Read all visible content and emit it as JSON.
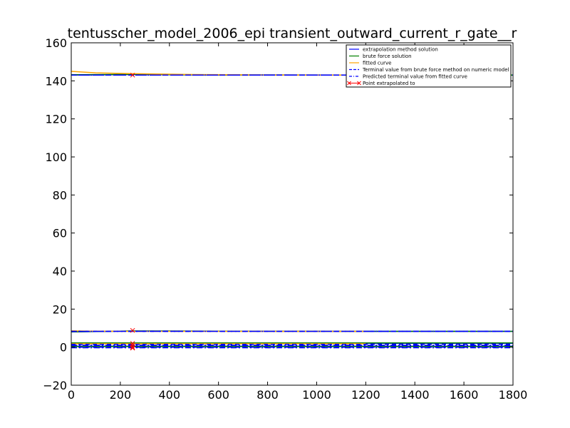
{
  "chart_data": {
    "type": "line",
    "title": "tentusscher_model_2006_epi transient_outward_current_r_gate__r",
    "xlabel": "",
    "ylabel": "",
    "xlim": [
      0,
      1800
    ],
    "ylim": [
      -20,
      160
    ],
    "x_ticks": [
      0,
      200,
      400,
      600,
      800,
      1000,
      1200,
      1400,
      1600,
      1800
    ],
    "y_ticks": [
      -20,
      0,
      20,
      40,
      60,
      80,
      100,
      120,
      140,
      160
    ],
    "x_tick_labels": [
      "0",
      "200",
      "400",
      "600",
      "800",
      "1000",
      "1200",
      "1400",
      "1600",
      "1800"
    ],
    "y_tick_labels": [
      "−20",
      "0",
      "20",
      "40",
      "60",
      "80",
      "100",
      "120",
      "140",
      "160"
    ],
    "grid": false,
    "legend_position": "top-right",
    "legend": [
      {
        "label": "extrapolation method solution",
        "color": "#0000ff",
        "style": "solid"
      },
      {
        "label": "brute force solution",
        "color": "#008000",
        "style": "solid"
      },
      {
        "label": "fitted curve",
        "color": "#ffa500",
        "style": "solid"
      },
      {
        "label": "Terminal value from brute force method on numeric model",
        "color": "#0000ff",
        "style": "dashed"
      },
      {
        "label": "Predicted terminal value from fitted curve",
        "color": "#0000ff",
        "style": "dashdot"
      },
      {
        "label": "Point extrapolated to",
        "color": "#ff0000",
        "style": "x-marker"
      }
    ],
    "series": [
      {
        "role": "extrapolation",
        "color": "#0000ff",
        "style": "solid",
        "x": [
          0,
          250,
          600,
          1200,
          1800
        ],
        "y": [
          143.0,
          143.3,
          143.1,
          143.0,
          143.0
        ]
      },
      {
        "role": "brute",
        "color": "#008000",
        "style": "solid",
        "x": [
          0,
          250,
          600,
          1200,
          1800
        ],
        "y": [
          143.2,
          143.4,
          143.1,
          143.0,
          143.0
        ]
      },
      {
        "role": "fitted",
        "color": "#ffa500",
        "style": "solid",
        "x": [
          0,
          100,
          250,
          500,
          800,
          1200
        ],
        "y": [
          145.0,
          144.2,
          143.8,
          143.3,
          143.1,
          143.0
        ]
      },
      {
        "role": "terminal-brute",
        "color": "#0000ff",
        "style": "dashed",
        "x": [
          0,
          1800
        ],
        "y": [
          143.0,
          143.0
        ]
      },
      {
        "role": "terminal-fit",
        "color": "#0000ff",
        "style": "dashdot",
        "x": [
          0,
          1800
        ],
        "y": [
          143.0,
          143.0
        ]
      },
      {
        "role": "extrapolation",
        "color": "#0000ff",
        "style": "solid",
        "x": [
          0,
          250,
          600,
          1200,
          1800
        ],
        "y": [
          8.0,
          8.5,
          8.4,
          8.3,
          8.3
        ]
      },
      {
        "role": "brute",
        "color": "#008000",
        "style": "solid",
        "x": [
          0,
          250,
          600,
          1200,
          1800
        ],
        "y": [
          8.1,
          8.5,
          8.4,
          8.3,
          8.3
        ]
      },
      {
        "role": "fitted",
        "color": "#ffa500",
        "style": "solid",
        "x": [
          0,
          100,
          250,
          500,
          800,
          1200
        ],
        "y": [
          8.6,
          8.4,
          8.3,
          8.3,
          8.3,
          8.3
        ]
      },
      {
        "role": "terminal-brute",
        "color": "#0000ff",
        "style": "dashed",
        "x": [
          0,
          1800
        ],
        "y": [
          8.3,
          8.3
        ]
      },
      {
        "role": "terminal-fit",
        "color": "#0000ff",
        "style": "dashdot",
        "x": [
          0,
          1800
        ],
        "y": [
          8.3,
          8.3
        ]
      },
      {
        "role": "extrapolation",
        "color": "#0000ff",
        "style": "solid",
        "x": [
          0,
          1800
        ],
        "y": [
          2.0,
          2.0
        ]
      },
      {
        "role": "brute",
        "color": "#008000",
        "style": "solid",
        "x": [
          0,
          1800
        ],
        "y": [
          2.2,
          2.2
        ]
      },
      {
        "role": "fitted",
        "color": "#ffa500",
        "style": "solid",
        "x": [
          0,
          1200
        ],
        "y": [
          1.8,
          1.8
        ]
      },
      {
        "role": "terminal-brute",
        "color": "#0000ff",
        "style": "dashed",
        "x": [
          0,
          1800
        ],
        "y": [
          1.5,
          1.5
        ]
      },
      {
        "role": "terminal-fit",
        "color": "#0000ff",
        "style": "dashdot",
        "x": [
          0,
          1800
        ],
        "y": [
          1.0,
          1.0
        ]
      },
      {
        "role": "extrapolation",
        "color": "#0000ff",
        "style": "solid",
        "x": [
          0,
          1800
        ],
        "y": [
          0.5,
          0.5
        ]
      },
      {
        "role": "brute",
        "color": "#008000",
        "style": "solid",
        "x": [
          0,
          1800
        ],
        "y": [
          0.3,
          0.3
        ]
      },
      {
        "role": "terminal-brute",
        "color": "#0000ff",
        "style": "dashed",
        "x": [
          0,
          1800
        ],
        "y": [
          0.0,
          0.0
        ]
      },
      {
        "role": "terminal-fit",
        "color": "#0000ff",
        "style": "dashdot",
        "x": [
          0,
          1800
        ],
        "y": [
          -0.3,
          -0.3
        ]
      }
    ],
    "extrapolated_points": [
      {
        "x": 250,
        "y": 143.0
      },
      {
        "x": 250,
        "y": 8.8
      },
      {
        "x": 250,
        "y": 2.0
      },
      {
        "x": 250,
        "y": 1.0
      },
      {
        "x": 250,
        "y": 0.0
      },
      {
        "x": 250,
        "y": -0.5
      }
    ]
  }
}
